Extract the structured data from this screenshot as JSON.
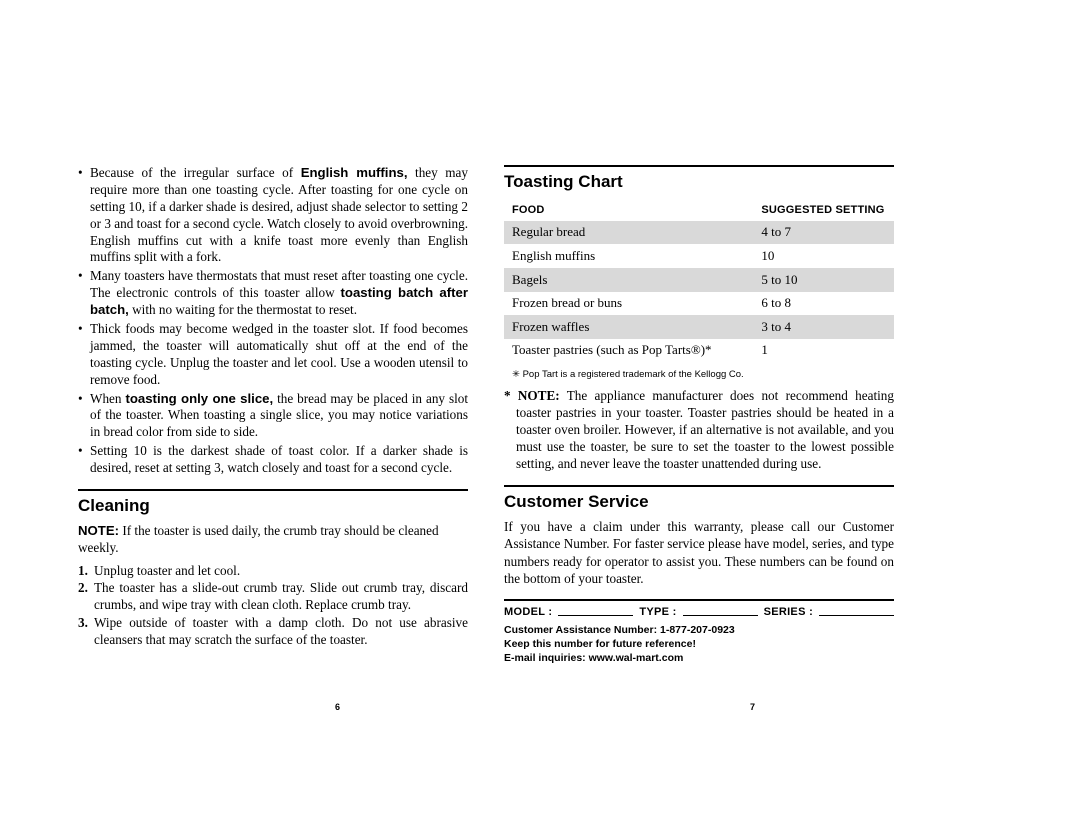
{
  "left": {
    "bullets": [
      "Because of the irregular surface of <b class='sans-b'>English muffins,</b> they may require more than one toasting cycle. After toasting for one cycle on setting 10, if a darker shade is desired, adjust shade selector to setting 2 or 3 and toast for a second cycle. Watch closely to avoid overbrowning. English muffins cut with a knife toast more evenly than English muffins split with a fork.",
      "Many toasters have thermostats that must reset after toasting one cycle. The electronic controls of this toaster allow <b class='sans-b'>toasting batch after batch,</b> with no waiting for the thermostat to reset.",
      "Thick foods may become wedged in the toaster slot. If food becomes jammed, the toaster will automatically shut off at the end of the toasting cycle. Unplug the toaster and let cool. Use a wooden utensil to remove food.",
      "When <b class='sans-b'>toasting only one slice,</b> the bread may be placed in any slot of the toaster. When toasting a single slice, you may notice variations in bread color from side to side.",
      "Setting 10 is the darkest shade of toast color. If a darker shade is desired, reset at setting 3, watch closely and toast for a second cycle."
    ],
    "cleaning_title": "Cleaning",
    "cleaning_note": "<b class='sans-b'>NOTE:</b> If the toaster is used daily, the crumb tray should be cleaned weekly.",
    "cleaning_steps": [
      "Unplug toaster and let cool.",
      "The toaster has a slide-out crumb tray. Slide out crumb tray, discard crumbs, and wipe tray with clean cloth. Replace crumb tray.",
      "Wipe outside of toaster with a damp cloth. Do not use abrasive cleansers that may scratch the surface of the toaster."
    ],
    "page_num": "6"
  },
  "right": {
    "chart_title": "Toasting Chart",
    "chart_headers": {
      "food": "Food",
      "setting": "Suggested Setting"
    },
    "chart_rows": [
      {
        "food": "Regular bread",
        "setting": "4 to 7",
        "shade": true
      },
      {
        "food": "English muffins",
        "setting": "10",
        "shade": false
      },
      {
        "food": "Bagels",
        "setting": "5 to 10",
        "shade": true
      },
      {
        "food": "Frozen bread or buns",
        "setting": "6 to 8",
        "shade": false
      },
      {
        "food": "Frozen waffles",
        "setting": "3 to 4",
        "shade": true
      },
      {
        "food": "Toaster pastries (such as Pop Tarts®)*",
        "setting": "1",
        "shade": false
      }
    ],
    "chart_colors": {
      "shade": "#d9d9d9",
      "bg": "#ffffff"
    },
    "footnote": "✳ Pop Tart is a registered trademark of the Kellogg Co.",
    "note": "<b>* NOTE:</b> The appliance manufacturer does not recommend heating toaster pastries in your toaster. Toaster pastries should be heated in a toaster oven broiler. However, if an alternative is not available, and you must use the toaster, be sure to set the toaster to the lowest possible setting, and never leave the toaster unattended during use.",
    "cs_title": "Customer Service",
    "cs_text": "If you have a claim under this warranty, please call our Customer Assistance Number. For faster service please have model, series, and type numbers ready for operator to assist you. These numbers can be found on the bottom of your toaster.",
    "fields": {
      "model": "MODEL :",
      "type": "TYPE :",
      "series": "SERIES :"
    },
    "contact": {
      "line1": "Customer Assistance Number: 1-877-207-0923",
      "line2": "Keep this number for future reference!",
      "line3": "E-mail inquiries: www.wal-mart.com"
    },
    "page_num": "7"
  }
}
